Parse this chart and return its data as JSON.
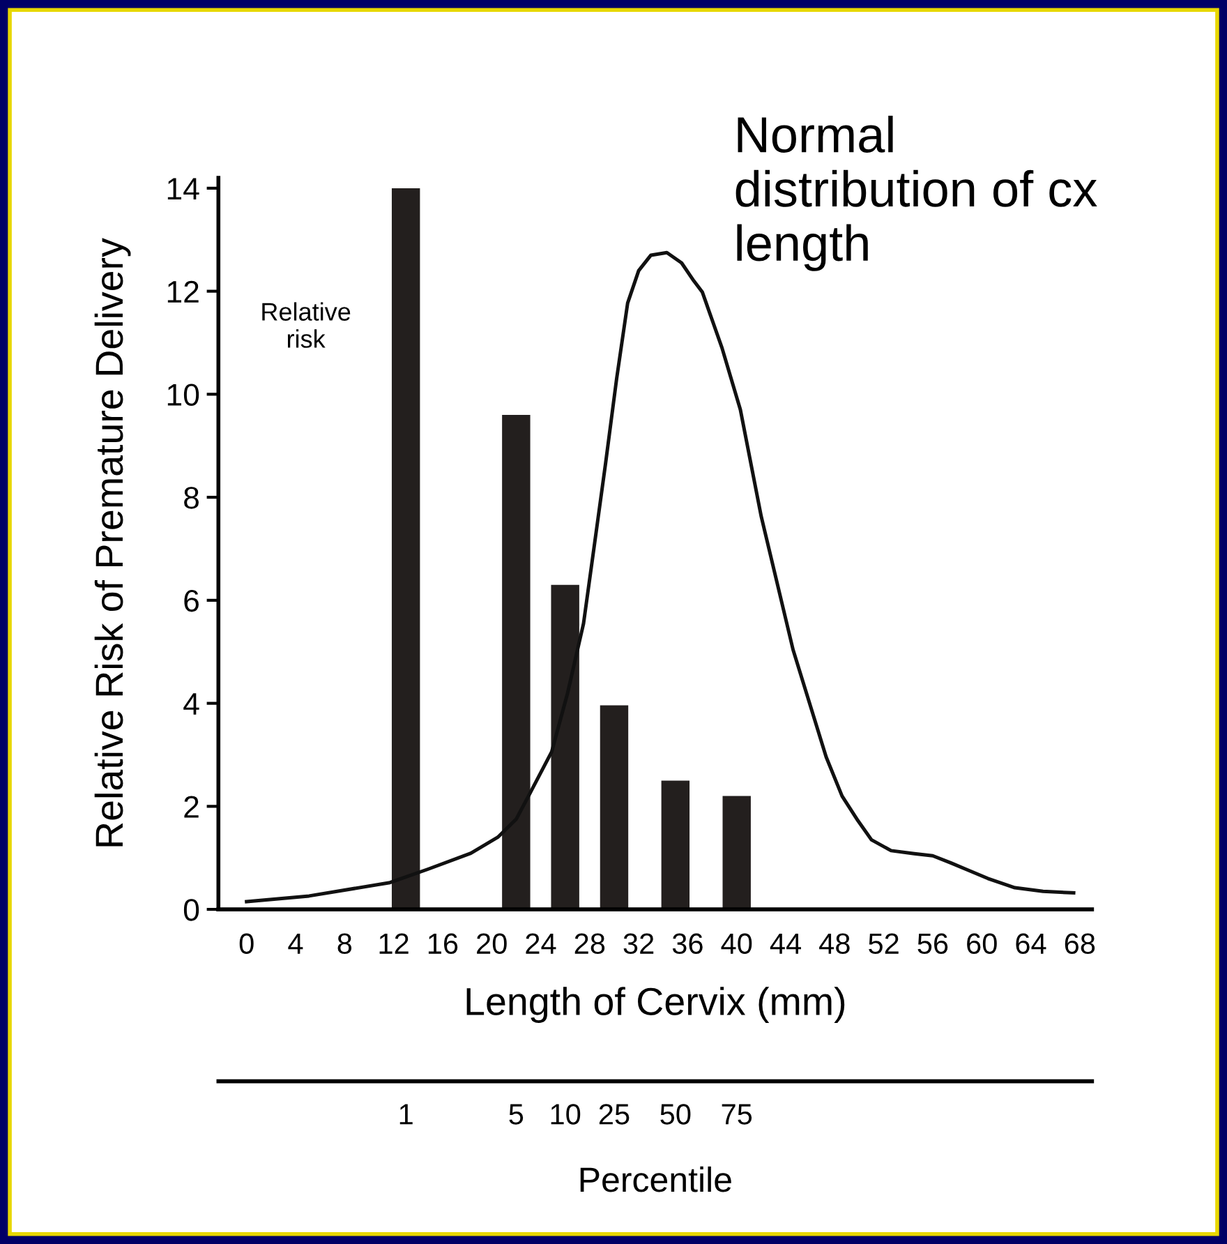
{
  "chart_data": {
    "type": "bar",
    "xlabel": "Length of Cervix (mm)",
    "ylabel": "Relative Risk of Premature Delivery",
    "x2label": "Percentile",
    "xlim": [
      -2.3,
      69
    ],
    "xticks": [
      0,
      4,
      8,
      12,
      16,
      20,
      24,
      28,
      32,
      36,
      40,
      44,
      48,
      52,
      56,
      60,
      64,
      68
    ],
    "ylim": [
      0,
      14.2
    ],
    "yticks": [
      0,
      2,
      4,
      6,
      8,
      10,
      12,
      14
    ],
    "series": [
      {
        "color": "#231f1e",
        "x": [
          13,
          22,
          26,
          30,
          35,
          40
        ],
        "values": [
          14,
          9.6,
          6.3,
          3.96,
          2.5,
          2.2
        ]
      },
      {
        "type": "line",
        "color": "#111111",
        "x": [
          0,
          5.1,
          11.7,
          14.8,
          18.3,
          20.5,
          22.0,
          23.1,
          24.9,
          26.2,
          27.5,
          28.4,
          29.3,
          30.2,
          31.1,
          32.0,
          33.0,
          34.3,
          35.5,
          36.5,
          37.2,
          38.8,
          40.3,
          42.0,
          44.6,
          47.3,
          48.6,
          49.9,
          51.0,
          52.6,
          54.5,
          56.0,
          57.5,
          58.7,
          60.5,
          62.7,
          65.0,
          67.5
        ],
        "values": [
          0.15,
          0.26,
          0.52,
          0.78,
          1.09,
          1.4,
          1.75,
          2.24,
          3.06,
          4.2,
          5.55,
          7.1,
          8.66,
          10.3,
          11.77,
          12.4,
          12.7,
          12.75,
          12.55,
          12.2,
          11.98,
          10.9,
          9.7,
          7.63,
          5.04,
          2.96,
          2.2,
          1.72,
          1.35,
          1.14,
          1.08,
          1.04,
          0.9,
          0.78,
          0.6,
          0.42,
          0.35,
          0.32
        ]
      }
    ],
    "annotations": [
      "Relative risk",
      "Normal distribution of cx length",
      "1",
      "5",
      "10",
      "25",
      "50",
      "75"
    ],
    "grid": false,
    "legend": false
  }
}
